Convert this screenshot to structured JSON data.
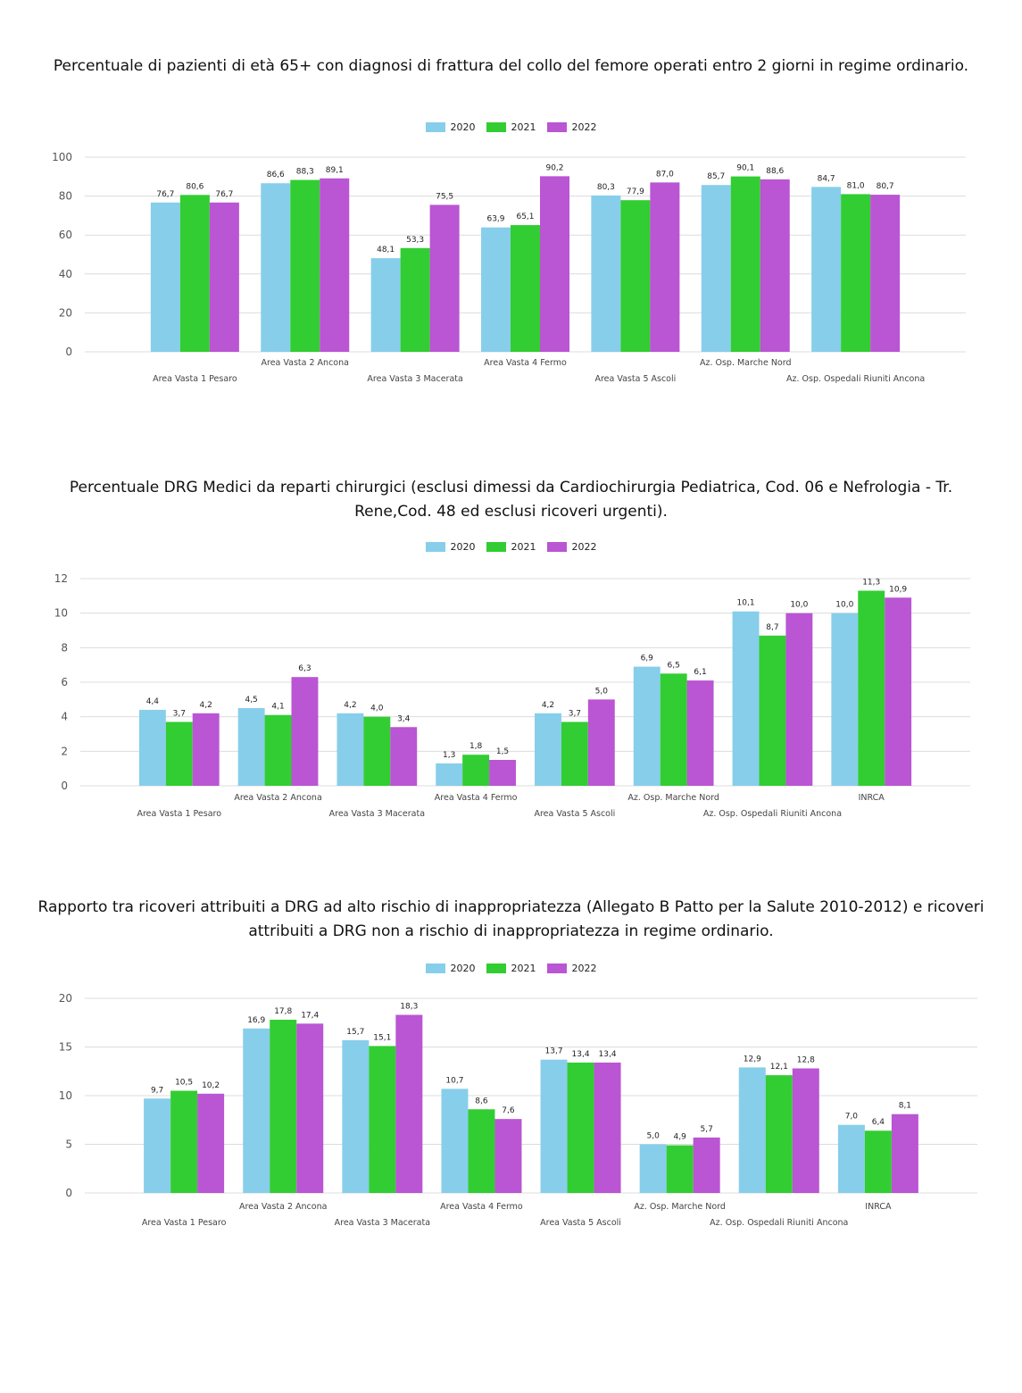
{
  "legend": [
    "2020",
    "2021",
    "2022"
  ],
  "colors": {
    "2020": "#87ceeb",
    "2021": "#32cd32",
    "2022": "#ba55d3"
  },
  "chart_data": [
    {
      "type": "bar",
      "title": "Percentuale di pazienti di età 65+ con diagnosi di frattura del collo del femore operati entro 2 giorni in regime ordinario.",
      "xlabel": "",
      "ylabel": "",
      "ylim": [
        0,
        100
      ],
      "yticks": [
        0,
        20,
        40,
        60,
        80,
        100
      ],
      "grid": true,
      "legend_position": "top-center",
      "categories": [
        "Area Vasta 1 Pesaro",
        "Area Vasta 2 Ancona",
        "Area Vasta 3 Macerata",
        "Area Vasta 4 Fermo",
        "Area Vasta 5 Ascoli",
        "Az. Osp. Marche Nord",
        "Az. Osp. Ospedali Riuniti Ancona"
      ],
      "series": [
        {
          "name": "2020",
          "values": [
            76.7,
            86.6,
            48.1,
            63.9,
            80.3,
            85.7,
            84.7
          ]
        },
        {
          "name": "2021",
          "values": [
            80.6,
            88.3,
            53.3,
            65.1,
            77.9,
            90.1,
            81.0
          ]
        },
        {
          "name": "2022",
          "values": [
            76.7,
            89.1,
            75.5,
            90.2,
            87.0,
            88.6,
            80.7
          ]
        }
      ]
    },
    {
      "type": "bar",
      "title": "Percentuale DRG Medici da reparti chirurgici (esclusi dimessi da Cardiochirurgia Pediatrica, Cod. 06 e Nefrologia - Tr. Rene,Cod. 48 ed esclusi ricoveri urgenti).",
      "xlabel": "",
      "ylabel": "",
      "ylim": [
        0,
        12
      ],
      "yticks": [
        0,
        2,
        4,
        6,
        8,
        10,
        12
      ],
      "grid": true,
      "legend_position": "top-center",
      "categories": [
        "Area Vasta 1 Pesaro",
        "Area Vasta 2 Ancona",
        "Area Vasta 3 Macerata",
        "Area Vasta 4 Fermo",
        "Area Vasta 5 Ascoli",
        "Az. Osp. Marche Nord",
        "Az. Osp. Ospedali Riuniti Ancona",
        "INRCA"
      ],
      "series": [
        {
          "name": "2020",
          "values": [
            4.4,
            4.5,
            4.2,
            1.3,
            4.2,
            6.9,
            10.1,
            10.0
          ]
        },
        {
          "name": "2021",
          "values": [
            3.7,
            4.1,
            4.0,
            1.8,
            3.7,
            6.5,
            8.7,
            11.3
          ]
        },
        {
          "name": "2022",
          "values": [
            4.2,
            6.3,
            3.4,
            1.5,
            5.0,
            6.1,
            10.0,
            10.9
          ]
        }
      ]
    },
    {
      "type": "bar",
      "title": "Rapporto tra ricoveri attribuiti a DRG ad alto rischio di inappropriatezza (Allegato B Patto per la Salute 2010-2012) e ricoveri attribuiti a DRG non a rischio di inappropriatezza in regime ordinario.",
      "xlabel": "",
      "ylabel": "",
      "ylim": [
        0,
        20
      ],
      "yticks": [
        0,
        5,
        10,
        15,
        20
      ],
      "grid": true,
      "legend_position": "top-center",
      "categories": [
        "Area Vasta 1 Pesaro",
        "Area Vasta 2 Ancona",
        "Area Vasta 3 Macerata",
        "Area Vasta 4 Fermo",
        "Area Vasta 5 Ascoli",
        "Az. Osp. Marche Nord",
        "Az. Osp. Ospedali Riuniti Ancona",
        "INRCA"
      ],
      "series": [
        {
          "name": "2020",
          "values": [
            9.7,
            16.9,
            15.7,
            10.7,
            13.7,
            5.0,
            12.9,
            7.0
          ]
        },
        {
          "name": "2021",
          "values": [
            10.5,
            17.8,
            15.1,
            8.6,
            13.4,
            4.9,
            12.1,
            6.4
          ]
        },
        {
          "name": "2022",
          "values": [
            10.2,
            17.4,
            18.3,
            7.6,
            13.4,
            5.7,
            12.8,
            8.1
          ]
        }
      ]
    }
  ]
}
